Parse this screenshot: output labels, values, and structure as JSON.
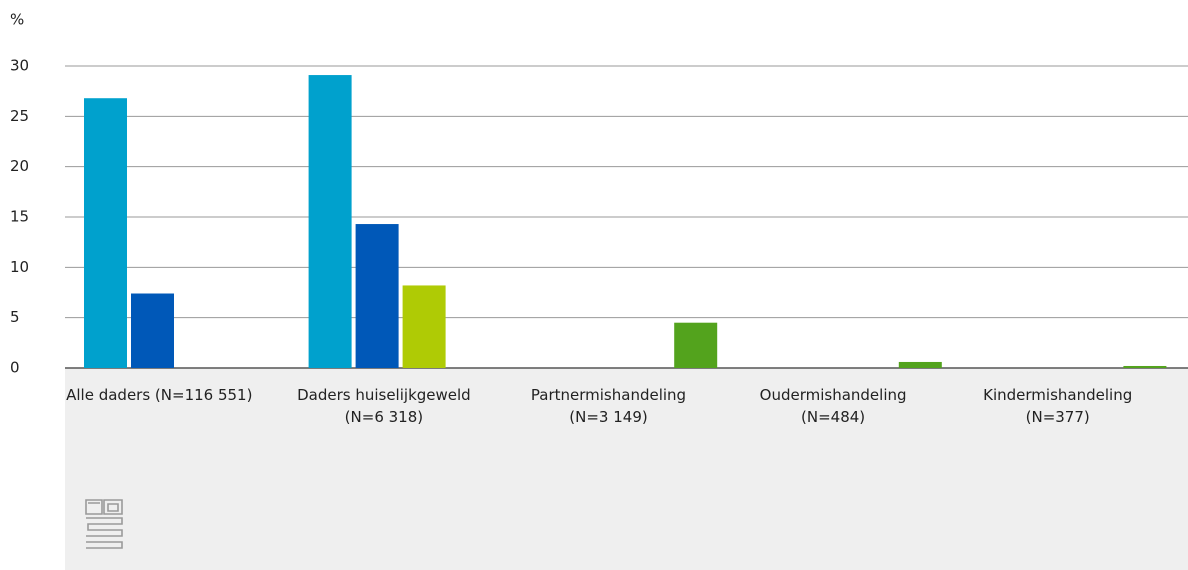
{
  "chart_data": {
    "type": "bar",
    "y_label": "%",
    "categories": [
      "Alle daders (N=116 551)",
      "Daders huiselijkgeweld (N=6 318)",
      "Partnermishandeling (N=3 149)",
      "Oudermishandeling (N=484)",
      "Kindermishandeling (N=377)"
    ],
    "series": [
      {
        "color": "#00a1cd",
        "values": [
          26.8,
          29.1,
          null,
          null,
          null
        ]
      },
      {
        "color": "#0058b8",
        "values": [
          7.4,
          14.3,
          null,
          null,
          null
        ]
      },
      {
        "color": "#afcb05",
        "values": [
          null,
          8.2,
          null,
          null,
          null
        ]
      },
      {
        "color": "#53a31d",
        "values": [
          null,
          null,
          4.5,
          0.6,
          0.2
        ]
      }
    ],
    "ylim": [
      0,
      30
    ],
    "yticks": [
      0,
      5,
      10,
      15,
      20,
      25,
      30
    ],
    "grid": true
  }
}
